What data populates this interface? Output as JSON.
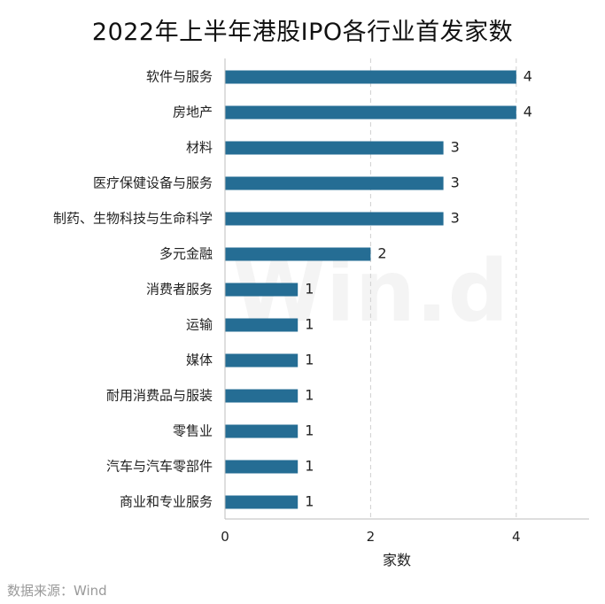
{
  "chart_data": {
    "type": "bar",
    "orientation": "horizontal",
    "title": "2022年上半年港股IPO各行业首发家数",
    "categories": [
      "软件与服务",
      "房地产",
      "材料",
      "医疗保健设备与服务",
      "制药、生物科技与生命科学",
      "多元金融",
      "消费者服务",
      "运输",
      "媒体",
      "耐用消费品与服装",
      "零售业",
      "汽车与汽车零部件",
      "商业和专业服务"
    ],
    "values": [
      4,
      4,
      3,
      3,
      3,
      2,
      1,
      1,
      1,
      1,
      1,
      1,
      1
    ],
    "xlabel": "家数",
    "ylabel": "",
    "xlim": [
      0,
      5
    ],
    "xticks": [
      0,
      2,
      4
    ],
    "grid": "vertical-dashed",
    "legend": "none",
    "bar_color": "#256d94"
  },
  "watermark": "Win.d",
  "source": "数据来源：Wind"
}
